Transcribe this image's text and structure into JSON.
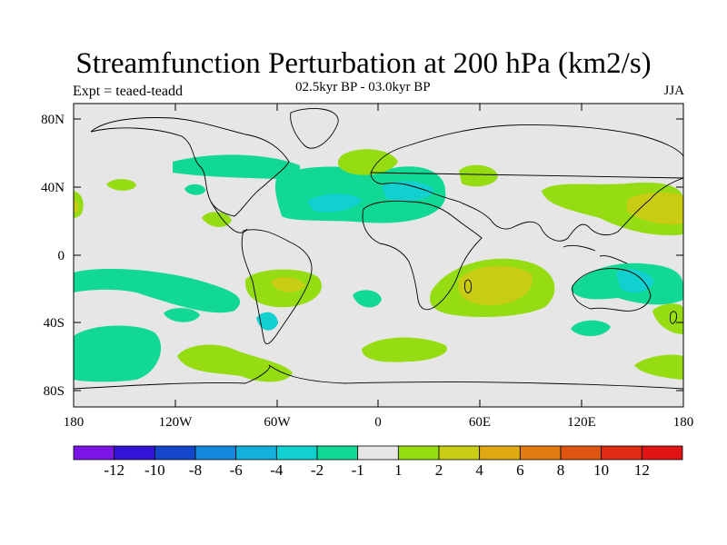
{
  "header": {
    "title": "Streamfunction Perturbation at 200 hPa (km2/s)",
    "experiment": "Expt = teaed-teadd",
    "period": "02.5kyr BP - 03.0kyr BP",
    "season": "JJA"
  },
  "map": {
    "projection": "cylindrical equidistant",
    "variable": "streamfunction perturbation",
    "level_hpa": 200,
    "lon_range": [
      -180,
      180
    ],
    "lat_range": [
      -90,
      90
    ],
    "land_fill": "#e6e6e6",
    "lat_tick_labels": [
      "80N",
      "40N",
      "0",
      "40S",
      "80S"
    ],
    "lon_tick_labels": [
      "180",
      "120W",
      "60W",
      "0",
      "60E",
      "120E",
      "180"
    ]
  },
  "colorbar": {
    "labels": [
      "-12",
      "-10",
      "-8",
      "-6",
      "-4",
      "-2",
      "-1",
      "1",
      "2",
      "4",
      "6",
      "8",
      "10",
      "12"
    ],
    "colors": [
      "#7a15e6",
      "#3314d6",
      "#1446cc",
      "#1488dc",
      "#12b0da",
      "#12d0d0",
      "#12d896",
      "#e6e6e6",
      "#96dc12",
      "#c8cc12",
      "#e0a812",
      "#e07c12",
      "#e05412",
      "#e02c12",
      "#e01414"
    ]
  },
  "regions": [
    {
      "name": "central-pacific-negative",
      "value": -1
    },
    {
      "name": "pacific-positive-low",
      "value": 1
    },
    {
      "name": "north-atlantic-negative",
      "value": -2
    },
    {
      "name": "mediterranean-negative",
      "value": -2
    },
    {
      "name": "south-america-positive",
      "value": 2
    },
    {
      "name": "southern-indian-ocean-positive",
      "value": 4
    },
    {
      "name": "northwest-pacific-positive",
      "value": 2
    },
    {
      "name": "australia-negative",
      "value": -2
    },
    {
      "name": "southern-ocean-positive",
      "value": 1
    }
  ]
}
